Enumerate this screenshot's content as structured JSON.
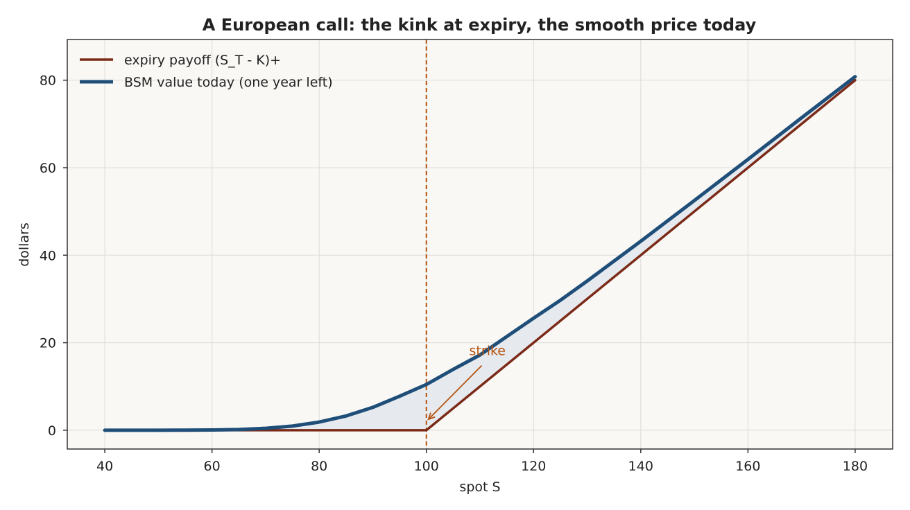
{
  "chart_data": {
    "type": "line",
    "title": "A European call: the kink at expiry, the smooth price today",
    "xlabel": "spot S",
    "ylabel": "dollars",
    "xlim": [
      33,
      187
    ],
    "ylim": [
      -4.3,
      89.3
    ],
    "xticks": [
      40,
      60,
      80,
      100,
      120,
      140,
      160,
      180
    ],
    "yticks": [
      0,
      20,
      40,
      60,
      80
    ],
    "grid": true,
    "legend_position": "top-left",
    "strike": 100,
    "annotation": {
      "text": "strike",
      "xy": [
        100,
        2.5
      ],
      "text_xy": [
        108,
        17
      ]
    },
    "series": [
      {
        "name": "expiry payoff (S_T - K)+",
        "color": "#7b2a17",
        "x": [
          40,
          100,
          180
        ],
        "y": [
          0,
          0,
          80
        ]
      },
      {
        "name": "BSM value today (one year left)",
        "color": "#1f4e79",
        "x": [
          40,
          50,
          55,
          60,
          65,
          70,
          75,
          80,
          85,
          90,
          95,
          100,
          105,
          110,
          115,
          120,
          125,
          130,
          140,
          150,
          160,
          170,
          180
        ],
        "y": [
          0.0,
          0.0,
          0.01,
          0.05,
          0.16,
          0.43,
          0.95,
          1.86,
          3.25,
          5.22,
          7.76,
          10.45,
          13.9,
          17.2,
          21.4,
          25.6,
          29.7,
          34.1,
          43.2,
          52.5,
          61.9,
          71.4,
          80.8
        ]
      }
    ],
    "colors": {
      "plot_background": "#f9f8f5",
      "fill_between": "#e6eaee",
      "strike_line": "#b5520e",
      "grid": "#dddbd6",
      "axes": "#333333"
    }
  }
}
